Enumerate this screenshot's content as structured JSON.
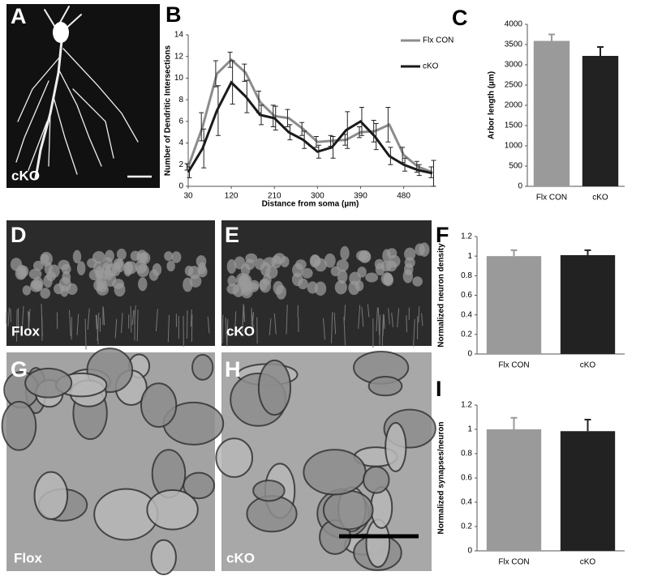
{
  "panels": [
    {
      "letter": "A",
      "label": "cKO"
    },
    {
      "letter": "B"
    },
    {
      "letter": "C"
    },
    {
      "letter": "D",
      "label": "Flox"
    },
    {
      "letter": "E",
      "label": "cKO"
    },
    {
      "letter": "F"
    },
    {
      "letter": "G",
      "label": "Flox"
    },
    {
      "letter": "H",
      "label": "cKO"
    },
    {
      "letter": "I"
    }
  ],
  "chart_data": [
    {
      "type": "line",
      "x_label": "Distance from soma (µm)",
      "y_label": "Number of Dendritic Intersections",
      "x": [
        30,
        60,
        90,
        120,
        150,
        180,
        210,
        240,
        270,
        300,
        330,
        360,
        390,
        420,
        450,
        480,
        510,
        540
      ],
      "xlim": [
        30,
        540
      ],
      "xticks": [
        30,
        120,
        210,
        300,
        390,
        480
      ],
      "ylim": [
        0,
        14
      ],
      "yticks": [
        0,
        2,
        4,
        6,
        8,
        10,
        12,
        14
      ],
      "series": [
        {
          "name": "Flx CON",
          "color": "#8c8c8c",
          "values": [
            1.8,
            5.5,
            10.4,
            11.7,
            10.5,
            7.8,
            6.5,
            6.3,
            5.3,
            4.1,
            4.2,
            4.3,
            5.0,
            5.1,
            5.7,
            2.9,
            1.8,
            1.3
          ],
          "errors": [
            0.3,
            1.3,
            1.2,
            0.7,
            0.8,
            1.0,
            1.0,
            0.8,
            0.6,
            0.5,
            0.5,
            0.5,
            0.5,
            1.0,
            1.6,
            0.7,
            0.5,
            0.5
          ]
        },
        {
          "name": "cKO",
          "color": "#1a1a1a",
          "values": [
            1.3,
            3.5,
            7.0,
            9.6,
            8.3,
            6.6,
            6.3,
            5.0,
            4.3,
            3.2,
            3.6,
            5.2,
            6.0,
            4.6,
            2.8,
            2.0,
            1.5,
            1.2
          ],
          "errors": [
            0.5,
            1.8,
            2.3,
            2.0,
            1.5,
            0.9,
            1.1,
            0.7,
            0.8,
            0.6,
            1.0,
            1.7,
            1.3,
            1.2,
            0.8,
            0.6,
            0.5,
            1.2
          ]
        }
      ]
    },
    {
      "type": "bar",
      "y_label": "Arbor length (µm)",
      "categories": [
        "Flx CON",
        "cKO"
      ],
      "values": [
        3590,
        3220
      ],
      "errors": [
        160,
        220
      ],
      "colors": [
        "#9a9a9a",
        "#222222"
      ],
      "ylim": [
        0,
        4000
      ],
      "yticks": [
        0,
        500,
        1000,
        1500,
        2000,
        2500,
        3000,
        3500,
        4000
      ]
    },
    {
      "type": "bar",
      "y_label": "Normalized neuron density",
      "categories": [
        "Flx CON",
        "cKO"
      ],
      "values": [
        1,
        1.01
      ],
      "errors": [
        0.06,
        0.05
      ],
      "colors": [
        "#9a9a9a",
        "#222222"
      ],
      "ylim": [
        0,
        1.2
      ],
      "yticks": [
        0,
        0.2,
        0.4,
        0.6,
        0.8,
        1,
        1.2
      ]
    },
    {
      "type": "bar",
      "y_label": "Normalized synapses/neuron",
      "categories": [
        "Flx CON",
        "cKO"
      ],
      "values": [
        1,
        0.985
      ],
      "errors": [
        0.095,
        0.095
      ],
      "colors": [
        "#9a9a9a",
        "#222222"
      ],
      "ylim": [
        0,
        1.2
      ],
      "yticks": [
        0,
        0.2,
        0.4,
        0.6,
        0.8,
        1,
        1.2
      ]
    }
  ]
}
